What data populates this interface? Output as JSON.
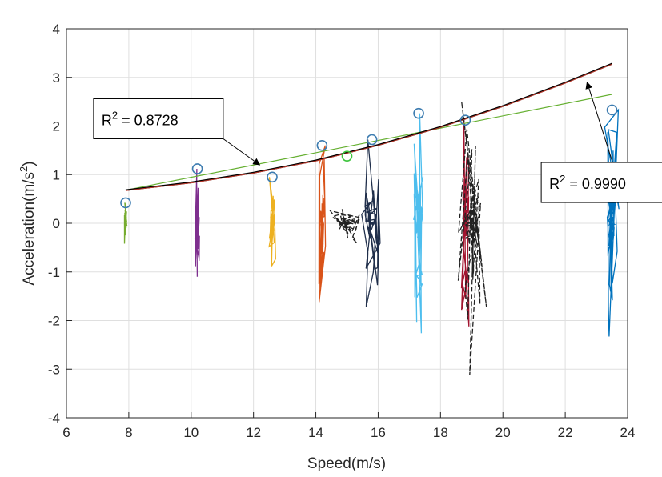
{
  "chart_data": {
    "type": "scatter",
    "title": "",
    "xlabel": "Speed(m/s)",
    "ylabel_main": "Acceleration(m/s",
    "ylabel_exp": "2",
    "ylabel_close": ")",
    "xlim": [
      6,
      24
    ],
    "ylim": [
      -4,
      4
    ],
    "xticks": [
      6,
      8,
      10,
      12,
      14,
      16,
      18,
      20,
      22,
      24
    ],
    "yticks": [
      -4,
      -3,
      -2,
      -1,
      0,
      1,
      2,
      3,
      4
    ],
    "grid": true,
    "peak_points": {
      "x": [
        7.9,
        10.2,
        12.6,
        14.2,
        15.8,
        17.3,
        18.8,
        23.5
      ],
      "y": [
        0.42,
        1.12,
        0.95,
        1.6,
        1.72,
        2.26,
        2.12,
        2.33
      ],
      "color": "#3d7cb0"
    },
    "outlier_point": {
      "x": 15.0,
      "y": 1.38,
      "color": "#3ec43e"
    },
    "fits": [
      {
        "label": "linear",
        "color": "#66b032",
        "x": [
          7.9,
          23.5
        ],
        "y": [
          0.68,
          2.65
        ]
      },
      {
        "label": "quadratic",
        "color": "#000000",
        "x": [
          7.9,
          10,
          12,
          14,
          16,
          18,
          20,
          22,
          23.5
        ],
        "y": [
          0.68,
          0.84,
          1.04,
          1.29,
          1.61,
          1.98,
          2.41,
          2.89,
          3.28
        ]
      },
      {
        "label": "quadratic-overlay",
        "color": "#c0392b",
        "x": [
          7.9,
          10,
          12,
          14,
          16,
          18,
          20,
          22,
          23.5
        ],
        "y": [
          0.67,
          0.83,
          1.03,
          1.28,
          1.6,
          1.97,
          2.4,
          2.88,
          3.27
        ]
      }
    ],
    "oscillations": [
      {
        "center": 7.9,
        "color": "#77ac30",
        "max": 0.42,
        "min": -0.42,
        "spread": 0.05,
        "style": "solid"
      },
      {
        "center": 10.2,
        "color": "#7e2f8e",
        "max": 1.12,
        "min": -1.1,
        "spread": 0.08,
        "style": "solid"
      },
      {
        "center": 12.6,
        "color": "#edb120",
        "max": 0.95,
        "min": -0.88,
        "spread": 0.12,
        "style": "solid"
      },
      {
        "center": 14.2,
        "color": "#d95319",
        "max": 1.6,
        "min": -1.62,
        "spread": 0.12,
        "style": "solid"
      },
      {
        "center": 15.8,
        "color": "#1f2e4a",
        "max": 1.72,
        "min": -1.72,
        "spread": 0.35,
        "style": "solid"
      },
      {
        "center": 15.0,
        "color": "#222222",
        "max": 0.3,
        "min": -0.4,
        "spread": 0.6,
        "style": "dashed"
      },
      {
        "center": 17.3,
        "color": "#4dbeee",
        "max": 2.26,
        "min": -2.26,
        "spread": 0.2,
        "style": "solid"
      },
      {
        "center": 18.8,
        "color": "#a2142f",
        "max": 2.12,
        "min": -2.12,
        "spread": 0.15,
        "style": "solid"
      },
      {
        "center": 19.0,
        "color": "#222222",
        "max": 2.5,
        "min": -3.12,
        "spread": 0.55,
        "style": "dashed"
      },
      {
        "center": 23.5,
        "color": "#0072bd",
        "max": 2.33,
        "min": -2.33,
        "spread": 0.28,
        "style": "solid"
      }
    ],
    "annotations": [
      {
        "text_main": "R",
        "text_exp": "2",
        "text_rest": " = 0.8728",
        "box_at": [
          6.87,
          2.56
        ],
        "arrow_tip": [
          12.2,
          1.2
        ]
      },
      {
        "text_main": "R",
        "text_exp": "2",
        "text_rest": " = 0.9990",
        "box_at": [
          21.23,
          1.25
        ],
        "arrow_tip": [
          22.7,
          2.9
        ]
      }
    ]
  }
}
